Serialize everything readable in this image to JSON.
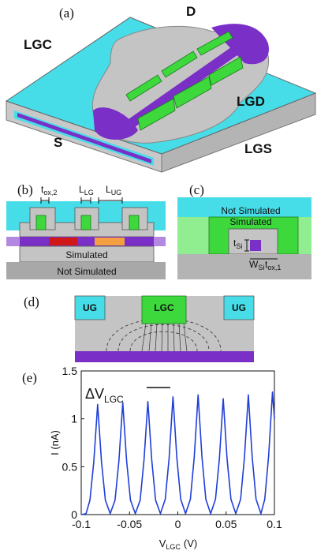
{
  "panel_a": {
    "label": "(a)",
    "d": "D",
    "lgc": "LGC",
    "lgd": "LGD",
    "lgs": "LGS",
    "s": "S"
  },
  "panel_b": {
    "label": "(b)",
    "tox2": {
      "main": "t",
      "sub": "ox,2"
    },
    "llg": {
      "main": "L",
      "sub": "LG"
    },
    "lug": {
      "main": "L",
      "sub": "UG"
    },
    "simulated": "Simulated",
    "not_simulated": "Not Simulated"
  },
  "panel_c": {
    "label": "(c)",
    "not_simulated": "Not Simulated",
    "simulated": "Simulated",
    "tsi": {
      "main": "t",
      "sub": "Si"
    },
    "wsi": {
      "main": "W",
      "sub": "Si"
    },
    "tox1": {
      "main": "t",
      "sub": "ox,1"
    }
  },
  "panel_d": {
    "label": "(d)",
    "ug_left": "UG",
    "lgc": "LGC",
    "ug_right": "UG"
  },
  "chart_data": {
    "type": "line",
    "panel_label": "(e)",
    "annotation": {
      "main": "ΔV",
      "sub": "LGC"
    },
    "x_label": {
      "main": "V",
      "sub": "LGC",
      "unit": "(V)"
    },
    "y_label": "I (nA)",
    "x": [
      -0.1,
      -0.095,
      -0.091,
      -0.087,
      -0.083,
      -0.079,
      -0.075,
      -0.07,
      -0.065,
      -0.061,
      -0.057,
      -0.053,
      -0.049,
      -0.044,
      -0.039,
      -0.035,
      -0.031,
      -0.027,
      -0.023,
      -0.018,
      -0.013,
      -0.009,
      -0.005,
      -0.001,
      0.003,
      0.008,
      0.013,
      0.017,
      0.021,
      0.025,
      0.029,
      0.034,
      0.039,
      0.043,
      0.047,
      0.051,
      0.055,
      0.06,
      0.065,
      0.069,
      0.073,
      0.077,
      0.081,
      0.086,
      0.09,
      0.094,
      0.098,
      0.1
    ],
    "series": [
      {
        "color": "#1f3fd8",
        "values": [
          0,
          0.01,
          0.15,
          0.55,
          1.15,
          0.55,
          0.15,
          0.01,
          0.15,
          0.56,
          1.17,
          0.56,
          0.15,
          0.01,
          0.15,
          0.57,
          1.18,
          0.57,
          0.15,
          0.01,
          0.16,
          0.59,
          1.23,
          0.59,
          0.16,
          0.01,
          0.16,
          0.6,
          1.25,
          0.6,
          0.16,
          0.01,
          0.16,
          0.58,
          1.21,
          0.58,
          0.16,
          0.01,
          0.16,
          0.6,
          1.25,
          0.6,
          0.16,
          0.01,
          0.16,
          0.61,
          1.28,
          1.0
        ]
      }
    ],
    "xlim": [
      -0.1,
      0.1
    ],
    "ylim": [
      0,
      1.5
    ],
    "xticks": [
      -0.1,
      -0.05,
      0,
      0.05,
      0.1
    ],
    "yticks": [
      0,
      0.5,
      1,
      1.5
    ]
  }
}
